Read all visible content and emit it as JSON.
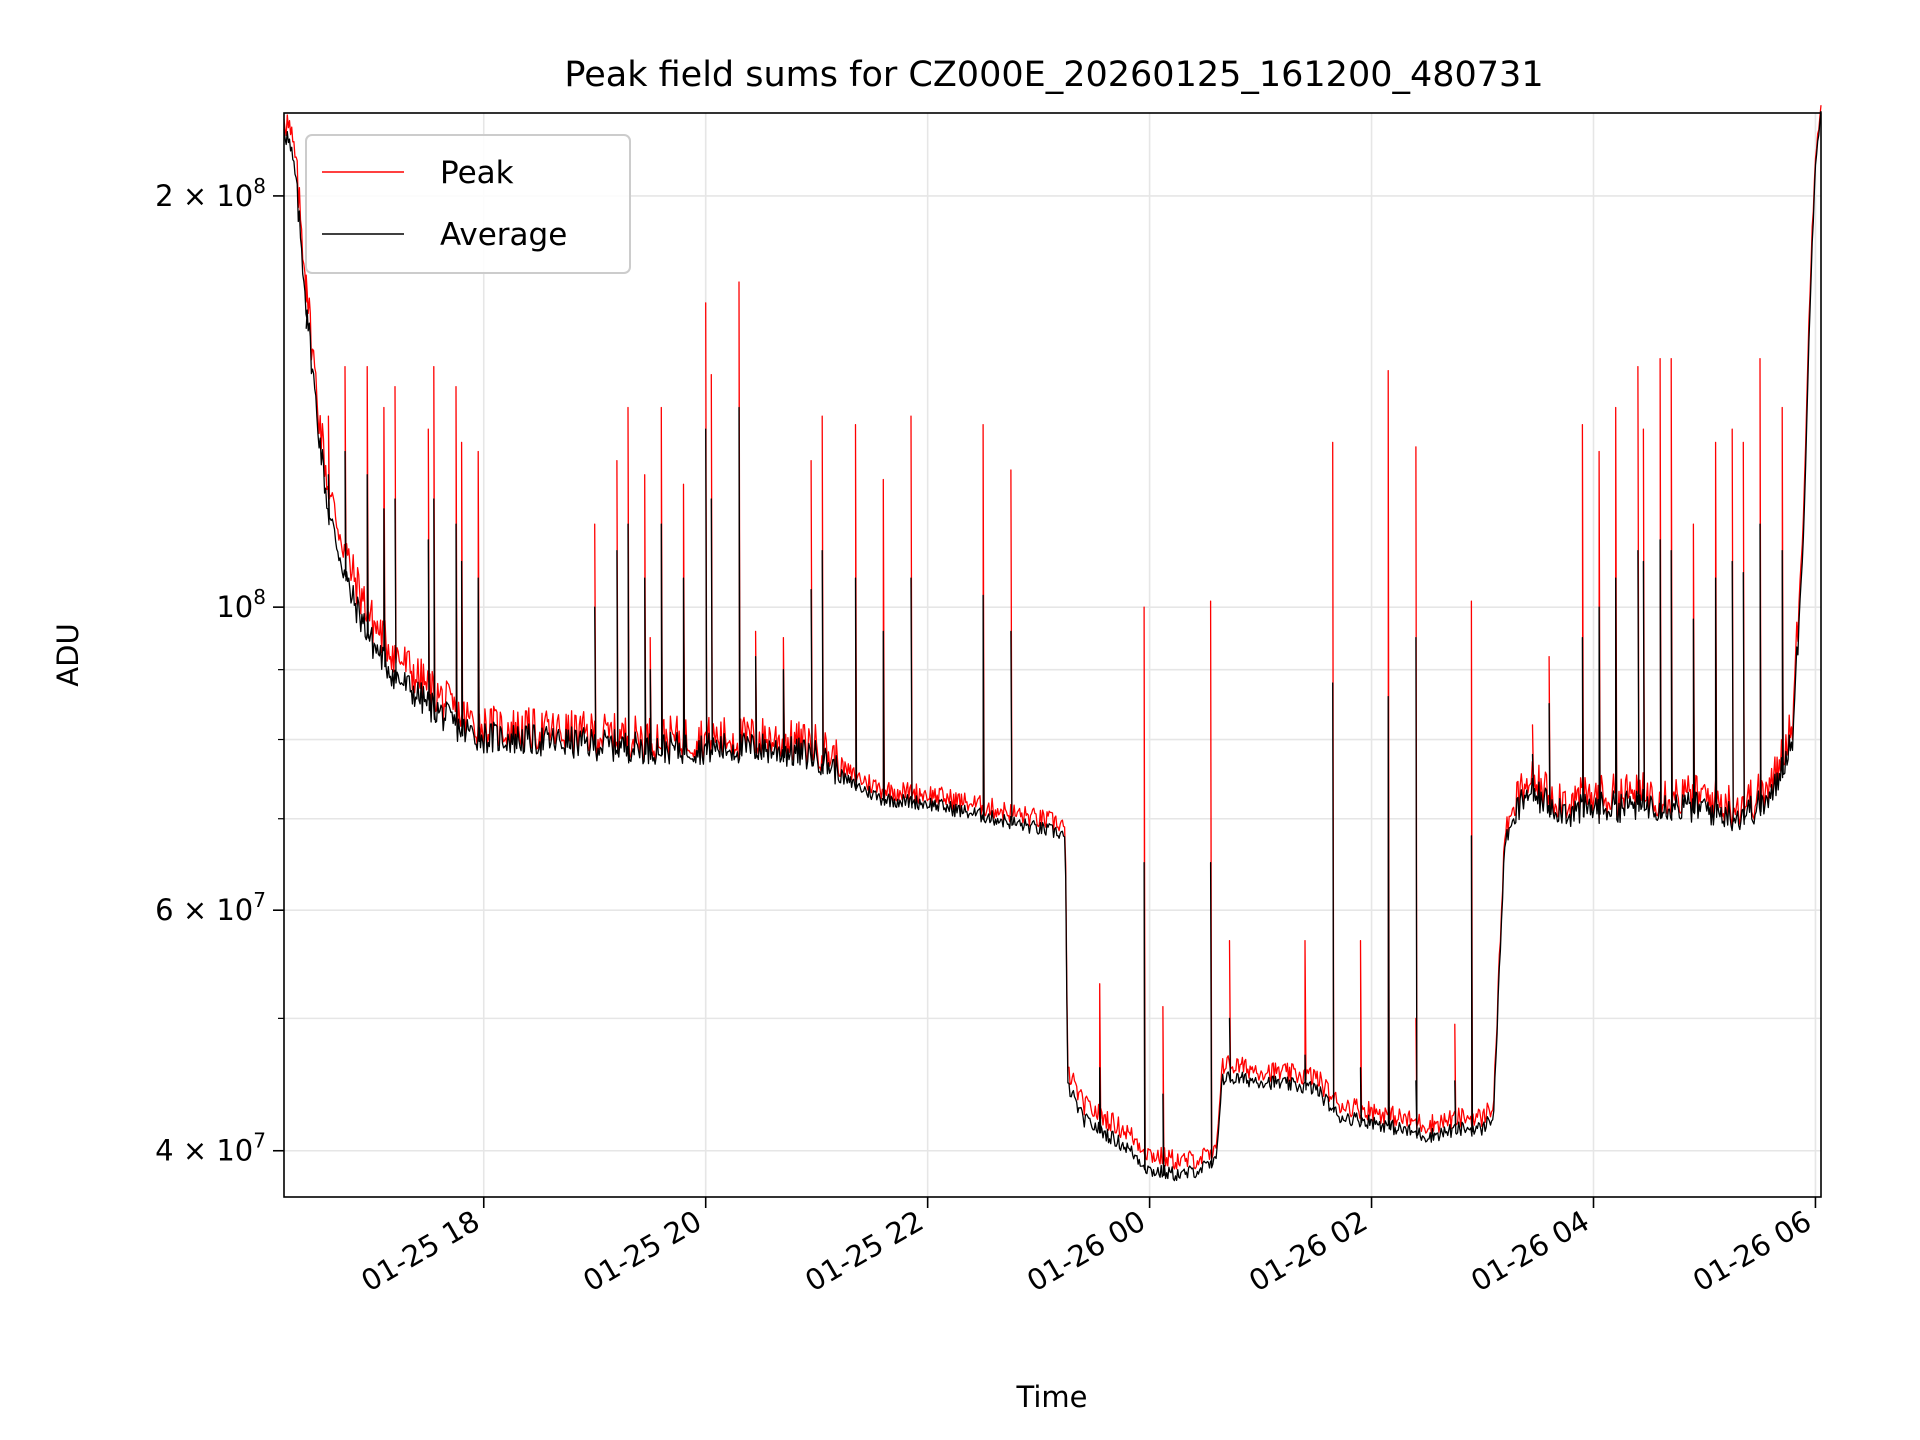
{
  "chart_data": {
    "type": "line",
    "title": "Peak field sums for CZ000E_20260125_161200_480731",
    "xlabel": "Time",
    "ylabel": "ADU",
    "yscale": "log",
    "grid": true,
    "legend_position": "top-left",
    "xlim_hours": [
      16.2,
      30.05
    ],
    "ylim": [
      37000000,
      230000000
    ],
    "x_unit": "hours since 01-25 00:00",
    "x_ticks": [
      {
        "value": 18,
        "label": "01-25 18"
      },
      {
        "value": 20,
        "label": "01-25 20"
      },
      {
        "value": 22,
        "label": "01-25 22"
      },
      {
        "value": 24,
        "label": "01-26 00"
      },
      {
        "value": 26,
        "label": "01-26 02"
      },
      {
        "value": 28,
        "label": "01-26 04"
      },
      {
        "value": 30,
        "label": "01-26 06"
      }
    ],
    "y_major_ticks": [
      {
        "value": 40000000,
        "mantissa": "4",
        "exponent": "7"
      },
      {
        "value": 60000000,
        "mantissa": "6",
        "exponent": "7"
      },
      {
        "value": 100000000,
        "mantissa": "",
        "exponent": "8"
      },
      {
        "value": 200000000,
        "mantissa": "2",
        "exponent": "8"
      }
    ],
    "y_minor_ticks": [
      50000000,
      70000000,
      80000000,
      90000000
    ],
    "series": [
      {
        "name": "Peak",
        "color": "#ff0000",
        "baseline": [
          [
            16.2,
            228000000
          ],
          [
            16.3,
            210000000
          ],
          [
            16.4,
            170000000
          ],
          [
            16.5,
            140000000
          ],
          [
            16.6,
            120000000
          ],
          [
            16.8,
            105000000
          ],
          [
            17.0,
            96000000
          ],
          [
            17.2,
            91000000
          ],
          [
            17.5,
            86000000
          ],
          [
            17.8,
            82000000
          ],
          [
            18.0,
            80500000
          ],
          [
            18.5,
            80000000
          ],
          [
            19.0,
            79500000
          ],
          [
            19.5,
            79000000
          ],
          [
            20.0,
            79000000
          ],
          [
            20.5,
            79000000
          ],
          [
            21.0,
            78000000
          ],
          [
            21.3,
            75000000
          ],
          [
            21.6,
            73000000
          ],
          [
            22.0,
            72500000
          ],
          [
            22.5,
            71000000
          ],
          [
            23.0,
            69500000
          ],
          [
            23.2,
            69000000
          ],
          [
            23.24,
            68500000
          ],
          [
            23.26,
            45500000
          ],
          [
            23.4,
            43000000
          ],
          [
            23.8,
            41000000
          ],
          [
            24.0,
            39500000
          ],
          [
            24.3,
            39000000
          ],
          [
            24.6,
            39500000
          ],
          [
            24.65,
            46000000
          ],
          [
            25.0,
            45500000
          ],
          [
            25.5,
            45000000
          ],
          [
            25.7,
            43000000
          ],
          [
            26.0,
            42500000
          ],
          [
            26.5,
            41500000
          ],
          [
            26.8,
            42000000
          ],
          [
            27.0,
            42000000
          ],
          [
            27.1,
            43000000
          ],
          [
            27.2,
            68000000
          ],
          [
            27.4,
            73500000
          ],
          [
            27.6,
            72000000
          ],
          [
            27.8,
            71000000
          ],
          [
            28.0,
            71500000
          ],
          [
            28.5,
            72000000
          ],
          [
            29.0,
            71500000
          ],
          [
            29.3,
            70500000
          ],
          [
            29.6,
            72500000
          ],
          [
            29.8,
            82000000
          ],
          [
            29.9,
            120000000
          ],
          [
            29.95,
            170000000
          ],
          [
            30.0,
            215000000
          ],
          [
            30.05,
            232000000
          ]
        ],
        "spikes": [
          [
            16.4,
            175000000
          ],
          [
            16.6,
            138000000
          ],
          [
            16.75,
            150000000
          ],
          [
            16.95,
            150000000
          ],
          [
            17.1,
            140000000
          ],
          [
            17.2,
            145000000
          ],
          [
            17.5,
            135000000
          ],
          [
            17.55,
            150000000
          ],
          [
            17.75,
            145000000
          ],
          [
            17.8,
            132000000
          ],
          [
            17.95,
            130000000
          ],
          [
            19.0,
            115000000
          ],
          [
            19.2,
            128000000
          ],
          [
            19.3,
            140000000
          ],
          [
            19.45,
            125000000
          ],
          [
            19.5,
            95000000
          ],
          [
            19.6,
            140000000
          ],
          [
            19.8,
            123000000
          ],
          [
            20.0,
            167000000
          ],
          [
            20.05,
            148000000
          ],
          [
            20.3,
            173000000
          ],
          [
            20.45,
            96000000
          ],
          [
            20.7,
            95000000
          ],
          [
            20.95,
            128000000
          ],
          [
            21.05,
            138000000
          ],
          [
            21.35,
            136000000
          ],
          [
            21.6,
            124000000
          ],
          [
            21.85,
            138000000
          ],
          [
            22.5,
            136000000
          ],
          [
            22.75,
            126000000
          ],
          [
            23.55,
            53000000
          ],
          [
            23.95,
            100000000
          ],
          [
            24.12,
            51000000
          ],
          [
            24.55,
            101000000
          ],
          [
            24.72,
            57000000
          ],
          [
            25.4,
            57000000
          ],
          [
            25.65,
            132000000
          ],
          [
            25.9,
            57000000
          ],
          [
            26.15,
            149000000
          ],
          [
            26.4,
            50000000
          ],
          [
            26.4,
            131000000
          ],
          [
            26.75,
            49500000
          ],
          [
            26.9,
            101000000
          ],
          [
            27.45,
            82000000
          ],
          [
            27.6,
            92000000
          ],
          [
            27.9,
            136000000
          ],
          [
            28.05,
            130000000
          ],
          [
            28.2,
            140000000
          ],
          [
            28.4,
            150000000
          ],
          [
            28.45,
            135000000
          ],
          [
            28.6,
            152000000
          ],
          [
            28.7,
            152000000
          ],
          [
            28.9,
            115000000
          ],
          [
            29.1,
            132000000
          ],
          [
            29.25,
            135000000
          ],
          [
            29.35,
            132000000
          ],
          [
            29.5,
            152000000
          ],
          [
            29.7,
            140000000
          ]
        ]
      },
      {
        "name": "Average",
        "color": "#000000",
        "baseline": [
          [
            16.2,
            224000000
          ],
          [
            16.3,
            205000000
          ],
          [
            16.4,
            165000000
          ],
          [
            16.5,
            136000000
          ],
          [
            16.6,
            116000000
          ],
          [
            16.8,
            101000000
          ],
          [
            17.0,
            93000000
          ],
          [
            17.2,
            88000000
          ],
          [
            17.5,
            84000000
          ],
          [
            17.8,
            80500000
          ],
          [
            18.0,
            79500000
          ],
          [
            18.5,
            79000000
          ],
          [
            19.0,
            78500000
          ],
          [
            19.5,
            78000000
          ],
          [
            20.0,
            78000000
          ],
          [
            20.5,
            78000000
          ],
          [
            21.0,
            77000000
          ],
          [
            21.3,
            74000000
          ],
          [
            21.6,
            72000000
          ],
          [
            22.0,
            71500000
          ],
          [
            22.5,
            70000000
          ],
          [
            23.0,
            68500000
          ],
          [
            23.2,
            68000000
          ],
          [
            23.24,
            67500000
          ],
          [
            23.26,
            44500000
          ],
          [
            23.4,
            42000000
          ],
          [
            23.8,
            40000000
          ],
          [
            24.0,
            38500000
          ],
          [
            24.3,
            38200000
          ],
          [
            24.6,
            39000000
          ],
          [
            24.65,
            45000000
          ],
          [
            25.0,
            44800000
          ],
          [
            25.5,
            44200000
          ],
          [
            25.7,
            42200000
          ],
          [
            26.0,
            41800000
          ],
          [
            26.5,
            40800000
          ],
          [
            26.8,
            41300000
          ],
          [
            27.0,
            41300000
          ],
          [
            27.1,
            42300000
          ],
          [
            27.2,
            67000000
          ],
          [
            27.4,
            72500000
          ],
          [
            27.6,
            71000000
          ],
          [
            27.8,
            70000000
          ],
          [
            28.0,
            70500000
          ],
          [
            28.5,
            71000000
          ],
          [
            29.0,
            70500000
          ],
          [
            29.3,
            69500000
          ],
          [
            29.6,
            71500000
          ],
          [
            29.8,
            80000000
          ],
          [
            29.9,
            116000000
          ],
          [
            29.95,
            165000000
          ],
          [
            30.0,
            212000000
          ],
          [
            30.05,
            230000000
          ]
        ],
        "spikes": [
          [
            16.4,
            160000000
          ],
          [
            16.6,
            125000000
          ],
          [
            16.75,
            130000000
          ],
          [
            16.95,
            125000000
          ],
          [
            17.1,
            118000000
          ],
          [
            17.2,
            120000000
          ],
          [
            17.5,
            112000000
          ],
          [
            17.55,
            120000000
          ],
          [
            17.75,
            115000000
          ],
          [
            17.8,
            108000000
          ],
          [
            17.95,
            105000000
          ],
          [
            19.0,
            100000000
          ],
          [
            19.2,
            110000000
          ],
          [
            19.3,
            115000000
          ],
          [
            19.45,
            105000000
          ],
          [
            19.5,
            90000000
          ],
          [
            19.6,
            115000000
          ],
          [
            19.8,
            105000000
          ],
          [
            20.0,
            135000000
          ],
          [
            20.05,
            120000000
          ],
          [
            20.3,
            140000000
          ],
          [
            20.45,
            92000000
          ],
          [
            20.7,
            90000000
          ],
          [
            20.95,
            103000000
          ],
          [
            21.05,
            110000000
          ],
          [
            21.35,
            105000000
          ],
          [
            21.6,
            96000000
          ],
          [
            21.85,
            105000000
          ],
          [
            22.5,
            102000000
          ],
          [
            22.75,
            96000000
          ],
          [
            23.55,
            46000000
          ],
          [
            23.95,
            65000000
          ],
          [
            24.12,
            44000000
          ],
          [
            24.55,
            65000000
          ],
          [
            24.72,
            50000000
          ],
          [
            25.4,
            47000000
          ],
          [
            25.65,
            88000000
          ],
          [
            25.9,
            46000000
          ],
          [
            26.15,
            86000000
          ],
          [
            26.4,
            45000000
          ],
          [
            26.4,
            95000000
          ],
          [
            26.75,
            45000000
          ],
          [
            26.9,
            68000000
          ],
          [
            27.45,
            78000000
          ],
          [
            27.6,
            85000000
          ],
          [
            27.9,
            95000000
          ],
          [
            28.05,
            100000000
          ],
          [
            28.2,
            105000000
          ],
          [
            28.4,
            110000000
          ],
          [
            28.45,
            108000000
          ],
          [
            28.6,
            112000000
          ],
          [
            28.7,
            110000000
          ],
          [
            28.9,
            98000000
          ],
          [
            29.1,
            105000000
          ],
          [
            29.25,
            108000000
          ],
          [
            29.35,
            106000000
          ],
          [
            29.5,
            115000000
          ],
          [
            29.7,
            110000000
          ]
        ]
      }
    ]
  }
}
